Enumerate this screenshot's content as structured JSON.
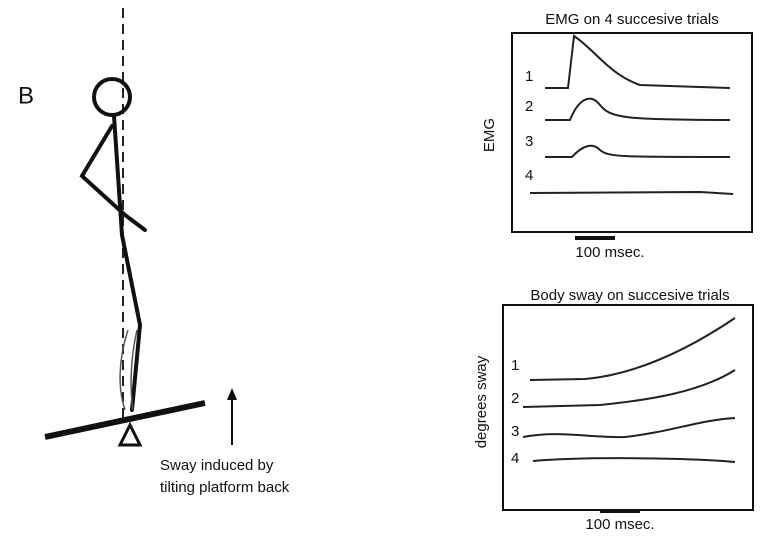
{
  "panel_label": "B",
  "caption": [
    "Sway induced by",
    "tilting platform back"
  ],
  "emg_plot": {
    "title": "EMG on 4 succesive trials",
    "y_label": "EMG",
    "trace_labels": [
      "1",
      "2",
      "3",
      "4"
    ],
    "scale_bar": "100 msec."
  },
  "sway_plot": {
    "title": "Body sway on succesive trials",
    "y_label": "degrees sway",
    "trace_labels": [
      "1",
      "2",
      "3",
      "4"
    ],
    "scale_bar": "100 msec."
  }
}
